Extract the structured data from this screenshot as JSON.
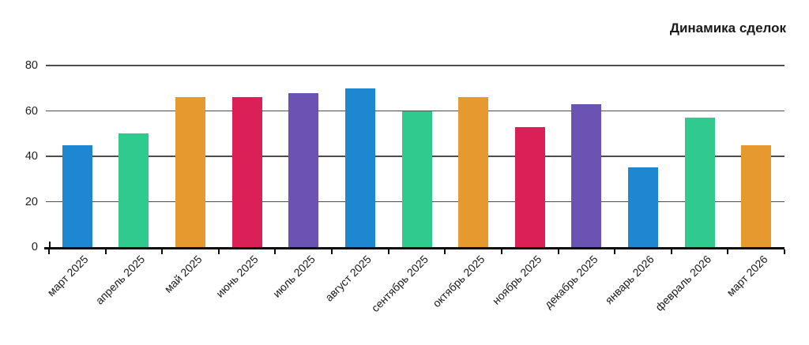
{
  "header": {
    "title": "Динамика сделок"
  },
  "chart_data": {
    "type": "bar",
    "title": "Динамика сделок",
    "categories": [
      "март 2025",
      "апрель 2025",
      "май 2025",
      "июнь 2025",
      "июль 2025",
      "август 2025",
      "сентябрь 2025",
      "октябрь 2025",
      "ноябрь 2025",
      "декабрь 2025",
      "январь 2026",
      "февраль 2026",
      "март 2026"
    ],
    "values": [
      45,
      50,
      66,
      66,
      68,
      70,
      60,
      66,
      53,
      63,
      35,
      57,
      45
    ],
    "palette": [
      "#1e87d2",
      "#30c98e",
      "#e6992e",
      "#da2057",
      "#6a53b2"
    ],
    "bar_colors": [
      "#1e87d2",
      "#30c98e",
      "#e6992e",
      "#da2057",
      "#6a53b2",
      "#1e87d2",
      "#30c98e",
      "#e6992e",
      "#da2057",
      "#6a53b2",
      "#1e87d2",
      "#30c98e",
      "#e6992e"
    ],
    "xlabel": "",
    "ylabel": "",
    "ylim": [
      0,
      80
    ],
    "yticks": [
      0,
      20,
      40,
      60,
      80
    ],
    "grid": "horizontal",
    "legend": "none",
    "x_tick_rotation": -45
  },
  "colors": {
    "background": "#ffffff",
    "grid": "#4d4d4d",
    "axis": "#0d0d0d",
    "text": "#1a1a1a"
  }
}
